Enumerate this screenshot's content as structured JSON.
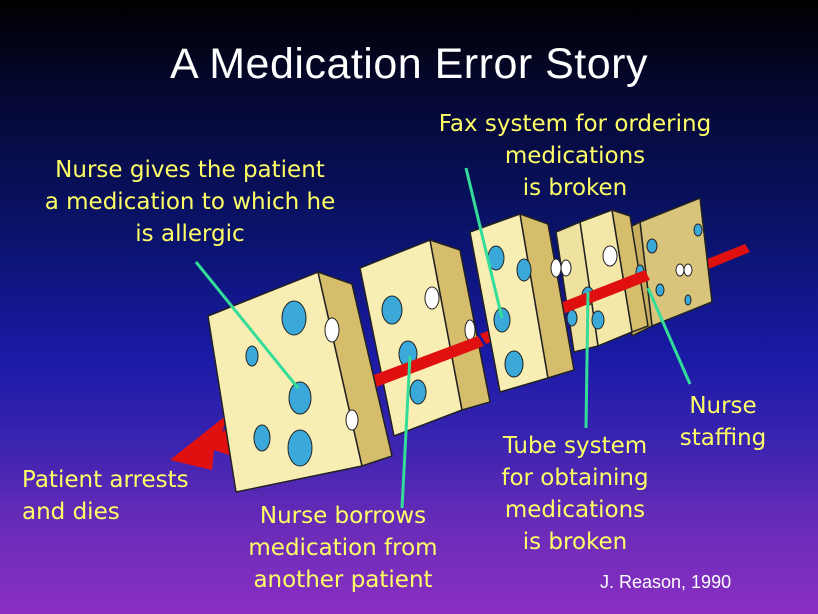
{
  "title": "A Medication Error Story",
  "labels": {
    "fax": [
      "Fax system for ordering",
      "medications",
      "is broken"
    ],
    "nurse_gives": [
      "Nurse gives the patient",
      "a medication to which he",
      "is allergic"
    ],
    "patient": [
      "Patient arrests",
      "and dies"
    ],
    "nurse_borrows": [
      "Nurse borrows",
      "medication from",
      "another patient"
    ],
    "tube": [
      "Tube system",
      "for obtaining",
      "medications",
      "is broken"
    ],
    "staffing": [
      "Nurse",
      "staffing"
    ]
  },
  "citation": "J. Reason, 1990",
  "colors": {
    "label_text": "#ffff66",
    "cheese_face": "#f8eeb4",
    "cheese_side": "#d8c27a",
    "arrow": "#e01010",
    "pointer_line": "#33dd99",
    "hole": "#3aa8d8"
  }
}
